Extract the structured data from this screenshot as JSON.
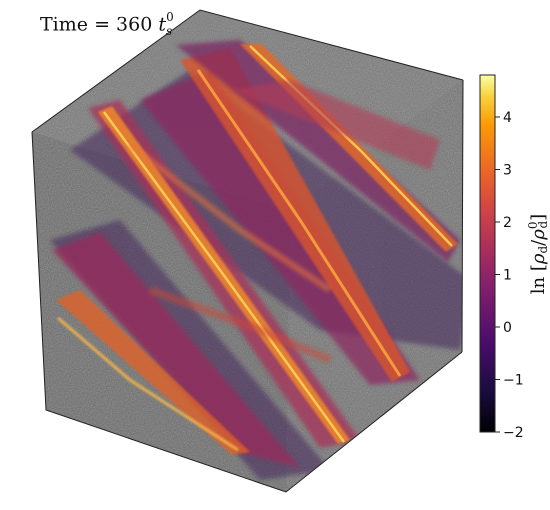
{
  "title": {
    "prefix": "Time",
    "equals": "=",
    "value": "360",
    "unit_base": "t",
    "unit_sub": "s",
    "unit_sup": "0"
  },
  "colorbar": {
    "label_text": "ln [ρd/ρd0]",
    "label_ln": "ln",
    "label_open": "[",
    "label_rho": "ρ",
    "label_sub": "d",
    "label_slash": "/",
    "label_sup": "0",
    "label_close": "]",
    "min": -2,
    "max": 4.8,
    "ticks": [
      "−2",
      "−1",
      "0",
      "1",
      "2",
      "3",
      "4"
    ],
    "tick_values": [
      -2,
      -1,
      0,
      1,
      2,
      3,
      4
    ],
    "colormap": "inferno"
  },
  "scene": {
    "type": "3D volume rendering",
    "description_visible": "dust density filaments in cube",
    "colors": {
      "background_gray": "#7a7a7a",
      "filament_hot": "#f7b03a",
      "filament_mid": "#c9452b",
      "filament_cool": "#5a1e6e",
      "frame": "#222222"
    }
  }
}
